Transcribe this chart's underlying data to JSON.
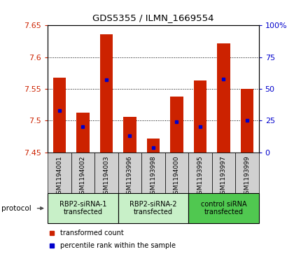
{
  "title": "GDS5355 / ILMN_1669554",
  "samples": [
    "GSM1194001",
    "GSM1194002",
    "GSM1194003",
    "GSM1193996",
    "GSM1193998",
    "GSM1194000",
    "GSM1193995",
    "GSM1193997",
    "GSM1193999"
  ],
  "groups": [
    {
      "label": "RBP2-siRNA-1\ntransfected",
      "indices": [
        0,
        1,
        2
      ],
      "color": "#c8f0c8"
    },
    {
      "label": "RBP2-siRNA-2\ntransfected",
      "indices": [
        3,
        4,
        5
      ],
      "color": "#c8f0c8"
    },
    {
      "label": "control siRNA\ntransfected",
      "indices": [
        6,
        7,
        8
      ],
      "color": "#50c850"
    }
  ],
  "bar_bottom": 7.45,
  "bar_tops": [
    7.568,
    7.513,
    7.636,
    7.506,
    7.472,
    7.538,
    7.563,
    7.622,
    7.55
  ],
  "percentile_values": [
    33,
    20,
    57,
    13,
    4,
    24,
    20,
    58,
    25
  ],
  "ylim": [
    7.45,
    7.65
  ],
  "yticks": [
    7.45,
    7.5,
    7.55,
    7.6,
    7.65
  ],
  "right_yticks": [
    0,
    25,
    50,
    75,
    100
  ],
  "bar_color": "#cc2200",
  "marker_color": "#0000cc",
  "bar_width": 0.55,
  "grid_color": "#000000",
  "plot_bg": "#ffffff",
  "label_color_left": "#cc2200",
  "label_color_right": "#0000cc",
  "sample_box_color": "#d0d0d0"
}
